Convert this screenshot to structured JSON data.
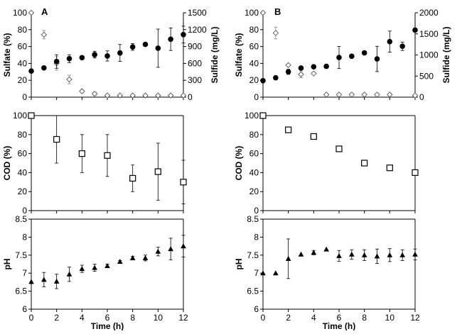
{
  "colors": {
    "axis": "#000000",
    "circle_fill": "#000000",
    "diamond_fill": "#ffffff",
    "square_fill": "#ffffff",
    "triangle_fill": "#000000"
  },
  "chart_data": [
    {
      "id": "A-sulfate",
      "panel_label": "A",
      "type": "scatter",
      "xlim": [
        0,
        12
      ],
      "xticks": [
        "0",
        "2",
        "4",
        "6",
        "8",
        "10",
        "12"
      ],
      "ylabel": "Sulfate (%)",
      "ylim": [
        0,
        100
      ],
      "yticks": [
        "0",
        "20",
        "40",
        "60",
        "80",
        "100"
      ],
      "y2label": "Sulfide (mg/L)",
      "y2lim": [
        0,
        1500
      ],
      "y2ticks": [
        "0",
        "300",
        "600",
        "900",
        "1200",
        "1500"
      ],
      "series": [
        {
          "name": "Sulfate",
          "marker": "diamond",
          "axis": "left",
          "x": [
            0,
            1,
            2,
            3,
            4,
            5,
            6,
            7,
            8,
            9,
            10,
            11,
            12
          ],
          "y": [
            100,
            74,
            40,
            21,
            7,
            4,
            2,
            2,
            2,
            2,
            2,
            2,
            2
          ],
          "err": [
            0,
            5,
            8,
            5,
            2,
            2,
            1,
            1,
            1,
            1,
            1,
            1,
            1
          ]
        },
        {
          "name": "Sulfide",
          "marker": "circle",
          "axis": "right",
          "x": [
            0,
            1,
            2,
            3,
            4,
            5,
            6,
            7,
            8,
            9,
            10,
            11,
            12
          ],
          "y": [
            464,
            520,
            634,
            684,
            702,
            756,
            732,
            786,
            892,
            938,
            870,
            1030,
            1112
          ],
          "err": [
            0,
            0,
            120,
            70,
            0,
            60,
            90,
            150,
            60,
            0,
            340,
            200,
            150
          ]
        }
      ]
    },
    {
      "id": "B-sulfate",
      "panel_label": "B",
      "type": "scatter",
      "xlim": [
        0,
        12
      ],
      "xticks": [
        "0",
        "2",
        "4",
        "6",
        "8",
        "10",
        "12"
      ],
      "ylabel": "Sulfate (%)",
      "ylim": [
        0,
        100
      ],
      "yticks": [
        "0",
        "20",
        "40",
        "60",
        "80",
        "100"
      ],
      "y2label": "Sulfide (mg/L)",
      "y2lim": [
        0,
        2000
      ],
      "y2ticks": [
        "0",
        "500",
        "1000",
        "1500",
        "2000"
      ],
      "series": [
        {
          "name": "Sulfate",
          "marker": "diamond",
          "axis": "left",
          "x": [
            0,
            1,
            2,
            3,
            4,
            5,
            6,
            7,
            8,
            9,
            10,
            12
          ],
          "y": [
            100,
            76,
            38,
            27,
            28,
            3,
            3,
            3,
            3,
            3,
            3,
            2
          ],
          "err": [
            0,
            7,
            0,
            4,
            0,
            0,
            0,
            0,
            0,
            0,
            0,
            0
          ]
        },
        {
          "name": "Sulfide",
          "marker": "circle",
          "axis": "right",
          "x": [
            0,
            1,
            2,
            3,
            4,
            5,
            6,
            7,
            8,
            9,
            10,
            11,
            12
          ],
          "y": [
            390,
            460,
            600,
            690,
            720,
            730,
            940,
            970,
            1050,
            906,
            1316,
            1206,
            1590
          ],
          "err": [
            0,
            0,
            60,
            0,
            0,
            0,
            260,
            0,
            0,
            300,
            250,
            100,
            0
          ]
        }
      ]
    },
    {
      "id": "A-cod",
      "type": "scatter",
      "xlim": [
        0,
        12
      ],
      "xticks": [
        "0",
        "2",
        "4",
        "6",
        "8",
        "10",
        "12"
      ],
      "ylabel": "COD (%)",
      "ylim": [
        0,
        100
      ],
      "yticks": [
        "0",
        "20",
        "40",
        "60",
        "80",
        "100"
      ],
      "series": [
        {
          "name": "COD",
          "marker": "square",
          "x": [
            0,
            2,
            4,
            6,
            8,
            10,
            12
          ],
          "y": [
            100,
            75,
            60,
            58,
            34,
            41,
            30
          ],
          "err": [
            0,
            25,
            20,
            22,
            14,
            30,
            23
          ]
        }
      ]
    },
    {
      "id": "B-cod",
      "type": "scatter",
      "xlim": [
        0,
        12
      ],
      "xticks": [
        "0",
        "2",
        "4",
        "6",
        "8",
        "10",
        "12"
      ],
      "ylabel": "COD  (%)",
      "ylim": [
        0,
        100
      ],
      "yticks": [
        "0",
        "20",
        "40",
        "60",
        "80",
        "100"
      ],
      "series": [
        {
          "name": "COD",
          "marker": "square",
          "x": [
            0,
            2,
            4,
            6,
            8,
            10,
            12
          ],
          "y": [
            100,
            85,
            78,
            65,
            50,
            45,
            40
          ],
          "err": [
            0,
            0,
            0,
            0,
            0,
            0,
            0
          ]
        }
      ]
    },
    {
      "id": "A-ph",
      "type": "scatter",
      "xlim": [
        0,
        12
      ],
      "xticks": [
        "0",
        "2",
        "4",
        "6",
        "8",
        "10",
        "12"
      ],
      "xlabel": "Time (h)",
      "ylabel": "pH",
      "ylim": [
        6,
        8.5
      ],
      "yticks": [
        "6",
        "6.5",
        "7",
        "7.5",
        "8",
        "8.5"
      ],
      "series": [
        {
          "name": "pH",
          "marker": "triangle",
          "x": [
            0,
            1,
            2,
            3,
            4,
            5,
            6,
            7,
            8,
            9,
            10,
            11,
            12
          ],
          "y": [
            6.76,
            6.82,
            6.77,
            6.97,
            7.12,
            7.15,
            7.2,
            7.32,
            7.42,
            7.42,
            7.6,
            7.67,
            7.75
          ],
          "err": [
            0,
            0.2,
            0.2,
            0.2,
            0.1,
            0.1,
            0.05,
            0.03,
            0.05,
            0.08,
            0.12,
            0.3,
            0.3
          ]
        }
      ]
    },
    {
      "id": "B-ph",
      "type": "scatter",
      "xlim": [
        0,
        12
      ],
      "xticks": [
        "0",
        "2",
        "4",
        "6",
        "8",
        "10",
        "12"
      ],
      "xlabel": "Time (h)",
      "ylabel": "pH",
      "ylim": [
        6,
        8.5
      ],
      "yticks": [
        "6",
        "6.5",
        "7",
        "7.5",
        "8",
        "8.5"
      ],
      "series": [
        {
          "name": "pH",
          "marker": "triangle",
          "x": [
            0,
            1,
            2,
            3,
            4,
            5,
            6,
            7,
            8,
            9,
            10,
            11,
            12
          ],
          "y": [
            7.0,
            7.0,
            7.4,
            7.52,
            7.57,
            7.66,
            7.48,
            7.52,
            7.5,
            7.47,
            7.5,
            7.5,
            7.52
          ],
          "err": [
            0,
            0,
            0.55,
            0,
            0.06,
            0,
            0.15,
            0.13,
            0.15,
            0.2,
            0.18,
            0.15,
            0.15
          ]
        }
      ]
    }
  ]
}
